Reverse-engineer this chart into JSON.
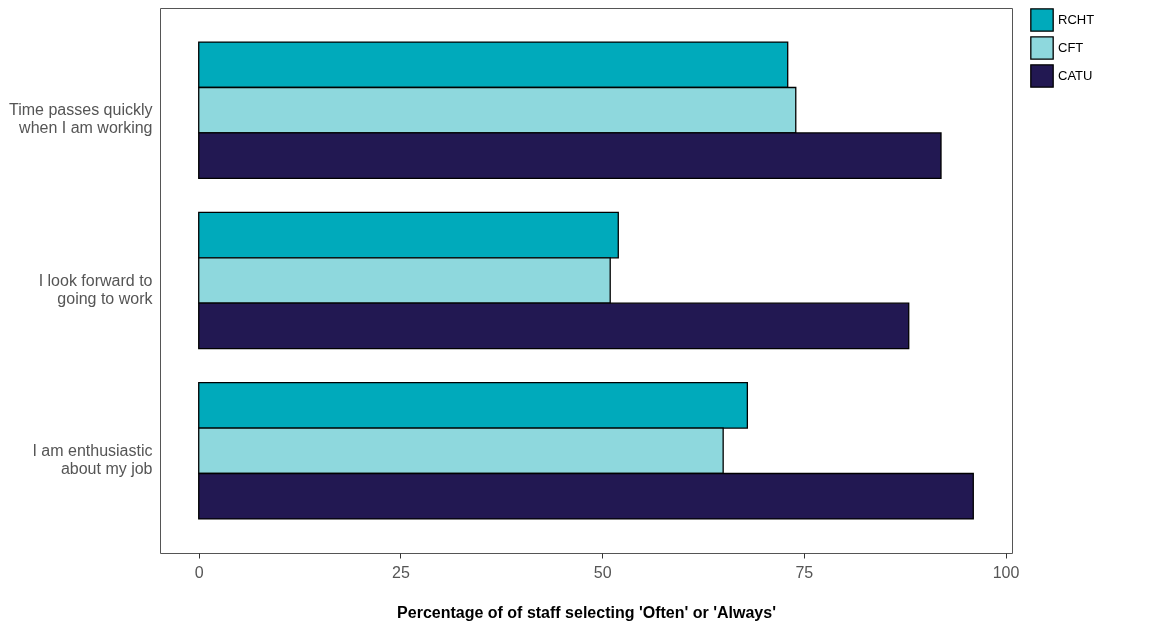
{
  "chart_data": {
    "type": "bar",
    "orientation": "horizontal",
    "xlabel": "Percentage of of staff selecting 'Often' or 'Always'",
    "categories": [
      "Time passes quickly\nwhen I am working",
      "I look forward to\ngoing to work",
      "I am enthusiastic\nabout my job"
    ],
    "series": [
      {
        "name": "RCHT",
        "color": "#00aabb",
        "values": [
          73,
          52,
          68
        ]
      },
      {
        "name": "CFT",
        "color": "#8ed8dd",
        "values": [
          74,
          51,
          65
        ]
      },
      {
        "name": "CATU",
        "color": "#221852",
        "values": [
          92,
          88,
          96
        ]
      }
    ],
    "xlim": [
      -4.8,
      100.8
    ],
    "xticks": [
      0,
      25,
      50,
      75,
      100
    ],
    "grid": false,
    "legend": "right"
  }
}
